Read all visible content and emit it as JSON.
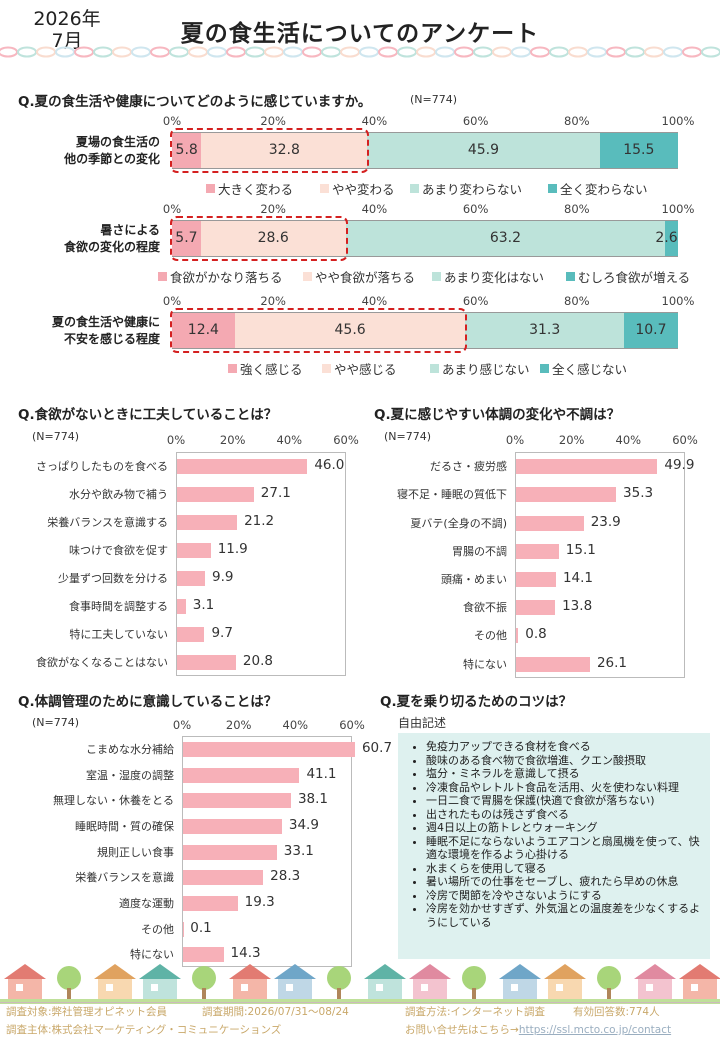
{
  "header": {
    "date_line1": "2026年",
    "date_line2": "7月",
    "title": "夏の食生活についてのアンケート"
  },
  "colors": {
    "s1": "#f4a9b2",
    "s2": "#fbe0d6",
    "s3": "#bde3da",
    "s4": "#59bcbc",
    "bar": "#f7b0b8",
    "dash": "#d42020",
    "tipbg": "#def1ef"
  },
  "q1": {
    "question": "Q.夏の食生活や健康についてどのように感じていますか。",
    "n": "(N=774)",
    "ticks": [
      "0%",
      "20%",
      "40%",
      "60%",
      "80%",
      "100%"
    ],
    "rows": [
      {
        "label": [
          "夏場の食生活の",
          "他の季節との変化"
        ],
        "values": [
          "5.8",
          "32.8",
          "45.9",
          "15.5"
        ],
        "legend": [
          "大きく変わる",
          "やや変わる",
          "あまり変わらない",
          "全く変わらない"
        ]
      },
      {
        "label": [
          "暑さによる",
          "食欲の変化の程度"
        ],
        "values": [
          "5.7",
          "28.6",
          "63.2",
          "2.6"
        ],
        "legend": [
          "食欲がかなり落ちる",
          "やや食欲が落ちる",
          "あまり変化はない",
          "むしろ食欲が増える"
        ]
      },
      {
        "label": [
          "夏の食生活や健康に",
          "不安を感じる程度"
        ],
        "values": [
          "12.4",
          "45.6",
          "31.3",
          "10.7"
        ],
        "legend": [
          "強く感じる",
          "やや感じる",
          "あまり感じない",
          "全く感じない"
        ]
      }
    ]
  },
  "chart_data": [
    {
      "type": "bar",
      "orientation": "horizontal",
      "stacked": true,
      "title": "Q.夏の食生活や健康についてどのように感じていますか。",
      "categories": [
        "夏場の食生活の他の季節との変化",
        "暑さによる食欲の変化の程度",
        "夏の食生活や健康に不安を感じる程度"
      ],
      "xlim": [
        0,
        100
      ],
      "series": [
        {
          "name": "大きく変わる / 食欲がかなり落ちる / 強く感じる",
          "values": [
            5.8,
            5.7,
            12.4
          ]
        },
        {
          "name": "やや変わる / やや食欲が落ちる / やや感じる",
          "values": [
            32.8,
            28.6,
            45.6
          ]
        },
        {
          "name": "あまり変わらない / あまり変化はない / あまり感じない",
          "values": [
            45.9,
            63.2,
            31.3
          ]
        },
        {
          "name": "全く変わらない / むしろ食欲が増える / 全く感じない",
          "values": [
            15.5,
            2.6,
            10.7
          ]
        }
      ]
    },
    {
      "type": "bar",
      "orientation": "horizontal",
      "title": "Q.食欲がないときに工夫していることは？",
      "n": "(N=774)",
      "xlim": [
        0,
        60
      ],
      "ticks": [
        "0%",
        "20%",
        "40%",
        "60%"
      ],
      "categories": [
        "さっぱりしたものを食べる",
        "水分や飲み物で補う",
        "栄養バランスを意識する",
        "味つけで食欲を促す",
        "少量ずつ回数を分ける",
        "食事時間を調整する",
        "特に工夫していない",
        "食欲がなくなることはない"
      ],
      "values": [
        46.0,
        27.1,
        21.2,
        11.9,
        9.9,
        3.1,
        9.7,
        20.8
      ],
      "labels": [
        "46.0",
        "27.1",
        "21.2",
        "11.9",
        "9.9",
        "3.1",
        "9.7",
        "20.8"
      ]
    },
    {
      "type": "bar",
      "orientation": "horizontal",
      "title": "Q.夏に感じやすい体調の変化や不調は？",
      "n": "(N=774)",
      "xlim": [
        0,
        60
      ],
      "ticks": [
        "0%",
        "20%",
        "40%",
        "60%"
      ],
      "categories": [
        "だるさ・疲労感",
        "寝不足・睡眠の質低下",
        "夏バテ(全身の不調)",
        "胃腸の不調",
        "頭痛・めまい",
        "食欲不振",
        "その他",
        "特にない"
      ],
      "values": [
        49.9,
        35.3,
        23.9,
        15.1,
        14.1,
        13.8,
        0.8,
        26.1
      ],
      "labels": [
        "49.9",
        "35.3",
        "23.9",
        "15.1",
        "14.1",
        "13.8",
        "0.8",
        "26.1"
      ]
    },
    {
      "type": "bar",
      "orientation": "horizontal",
      "title": "Q.体調管理のために意識していることは？",
      "n": "(N=774)",
      "xlim": [
        0,
        60
      ],
      "ticks": [
        "0%",
        "20%",
        "40%",
        "60%"
      ],
      "categories": [
        "こまめな水分補給",
        "室温・湿度の調整",
        "無理しない・休養をとる",
        "睡眠時間・質の確保",
        "規則正しい食事",
        "栄養バランスを意識",
        "適度な運動",
        "その他",
        "特にない"
      ],
      "values": [
        60.7,
        41.1,
        38.1,
        34.9,
        33.1,
        28.3,
        19.3,
        0.1,
        14.3
      ],
      "labels": [
        "60.7",
        "41.1",
        "38.1",
        "34.9",
        "33.1",
        "28.3",
        "19.3",
        "0.1",
        "14.3"
      ]
    }
  ],
  "q5": {
    "question": "Q.夏を乗り切るためのコツは？",
    "sub": "自由記述",
    "items": [
      "免疫力アップできる食材を食べる",
      "酸味のある食べ物で食欲増進、クエン酸摂取",
      "塩分・ミネラルを意識して摂る",
      "冷凍食品やレトルト食品を活用、火を使わない料理",
      "一日二食で胃腸を保護(快適で食欲が落ちない)",
      "出されたものは残さず食べる",
      "週4日以上の筋トレとウォーキング",
      "睡眠不足にならないようエアコンと扇風機を使って、快適な環境を作るよう心掛ける",
      "水まくらを使用して寝る",
      "暑い場所での仕事をセーブし、疲れたら早めの休息",
      "冷房で関節を冷やさないようにする",
      "冷房を効かせすぎず、外気温との温度差を少なくするようにしている"
    ]
  },
  "footer": {
    "target": "調査対象:弊社管理オピネット会員",
    "period": "調査期間:2026/07/31～08/24",
    "method": "調査方法:インターネット調査",
    "count": "有効回答数:774人",
    "sponsor": "調査主体:株式会社マーケティング・コミュニケーションズ",
    "contact": "お問い合せ先はこちら→",
    "url": "https://ssl.mcto.co.jp/contact"
  }
}
